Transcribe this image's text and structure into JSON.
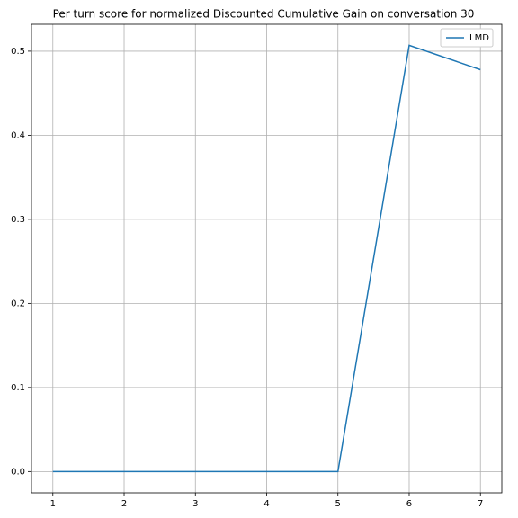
{
  "chart_data": {
    "type": "line",
    "title": "Per turn score for normalized Discounted Cumulative Gain on conversation 30",
    "x": [
      1,
      2,
      3,
      4,
      5,
      6,
      7
    ],
    "series": [
      {
        "name": "LMD",
        "color": "#1f77b4",
        "values": [
          0,
          0,
          0,
          0,
          0,
          0.507,
          0.478
        ]
      }
    ],
    "xlim": [
      0.7,
      7.3
    ],
    "xticks": [
      1,
      2,
      3,
      4,
      5,
      6,
      7
    ],
    "ylim": [
      -0.0253,
      0.532
    ],
    "yticks": [
      {
        "value": 0,
        "label": "0.0"
      },
      0.1,
      0.2,
      0.3,
      0.4,
      0.5
    ],
    "grid": true,
    "legend": "upper right"
  }
}
